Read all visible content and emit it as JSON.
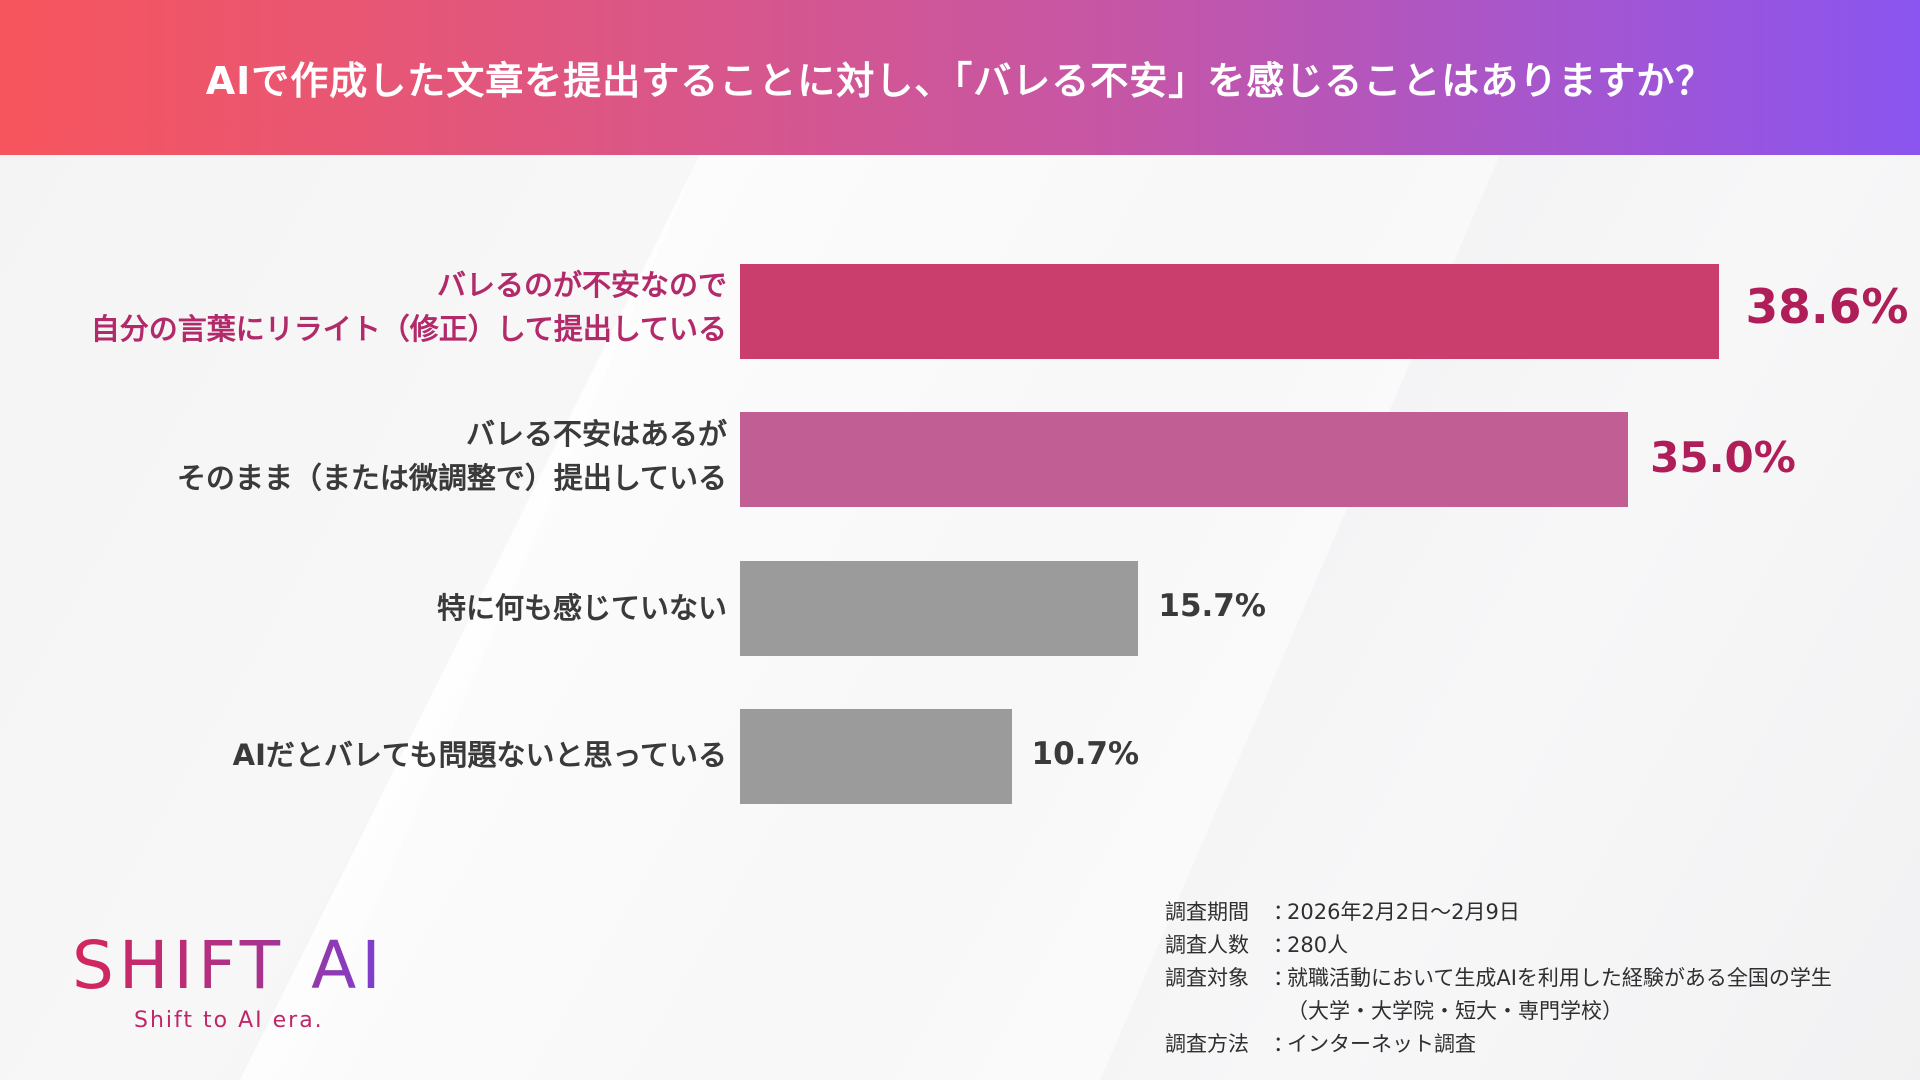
{
  "header": {
    "title": "AIで作成した文章を提出することに対し、「バレる不安」を感じることはありますか？"
  },
  "chart_data": {
    "type": "bar",
    "orientation": "horizontal",
    "title": "AIで作成した文章を提出することに対し、「バレる不安」を感じることはありますか？",
    "categories": [
      [
        "バレるのが不安なので",
        "自分の言葉にリライト（修正）して提出している"
      ],
      [
        "バレる不安はあるが",
        "そのまま（または微調整で）提出している"
      ],
      [
        "特に何も感じていない"
      ],
      [
        "AIだとバレても問題ないと思っている"
      ]
    ],
    "values": [
      38.6,
      35.0,
      15.7,
      10.7
    ],
    "value_labels": [
      "38.6%",
      "35.0%",
      "15.7%",
      "10.7%"
    ],
    "unit": "%",
    "xlim": [
      0,
      40
    ],
    "colors": [
      "#c93e6c",
      "#c15f95",
      "#9b9b9b",
      "#9b9b9b"
    ]
  },
  "notes": {
    "period_key": "調査期間",
    "period_val": "2026年2月2日～2月9日",
    "count_key": "調査人数",
    "count_val": "280人",
    "target_key": "調査対象",
    "target_val": "就職活動において生成AIを利用した経験がある全国の学生",
    "target_val2": "（大学・大学院・短大・専門学校）",
    "method_key": "調査方法",
    "method_val": "インターネット調査",
    "sep": "："
  },
  "logo": {
    "main": "SHIFT AI",
    "sub": "Shift to AI era."
  }
}
